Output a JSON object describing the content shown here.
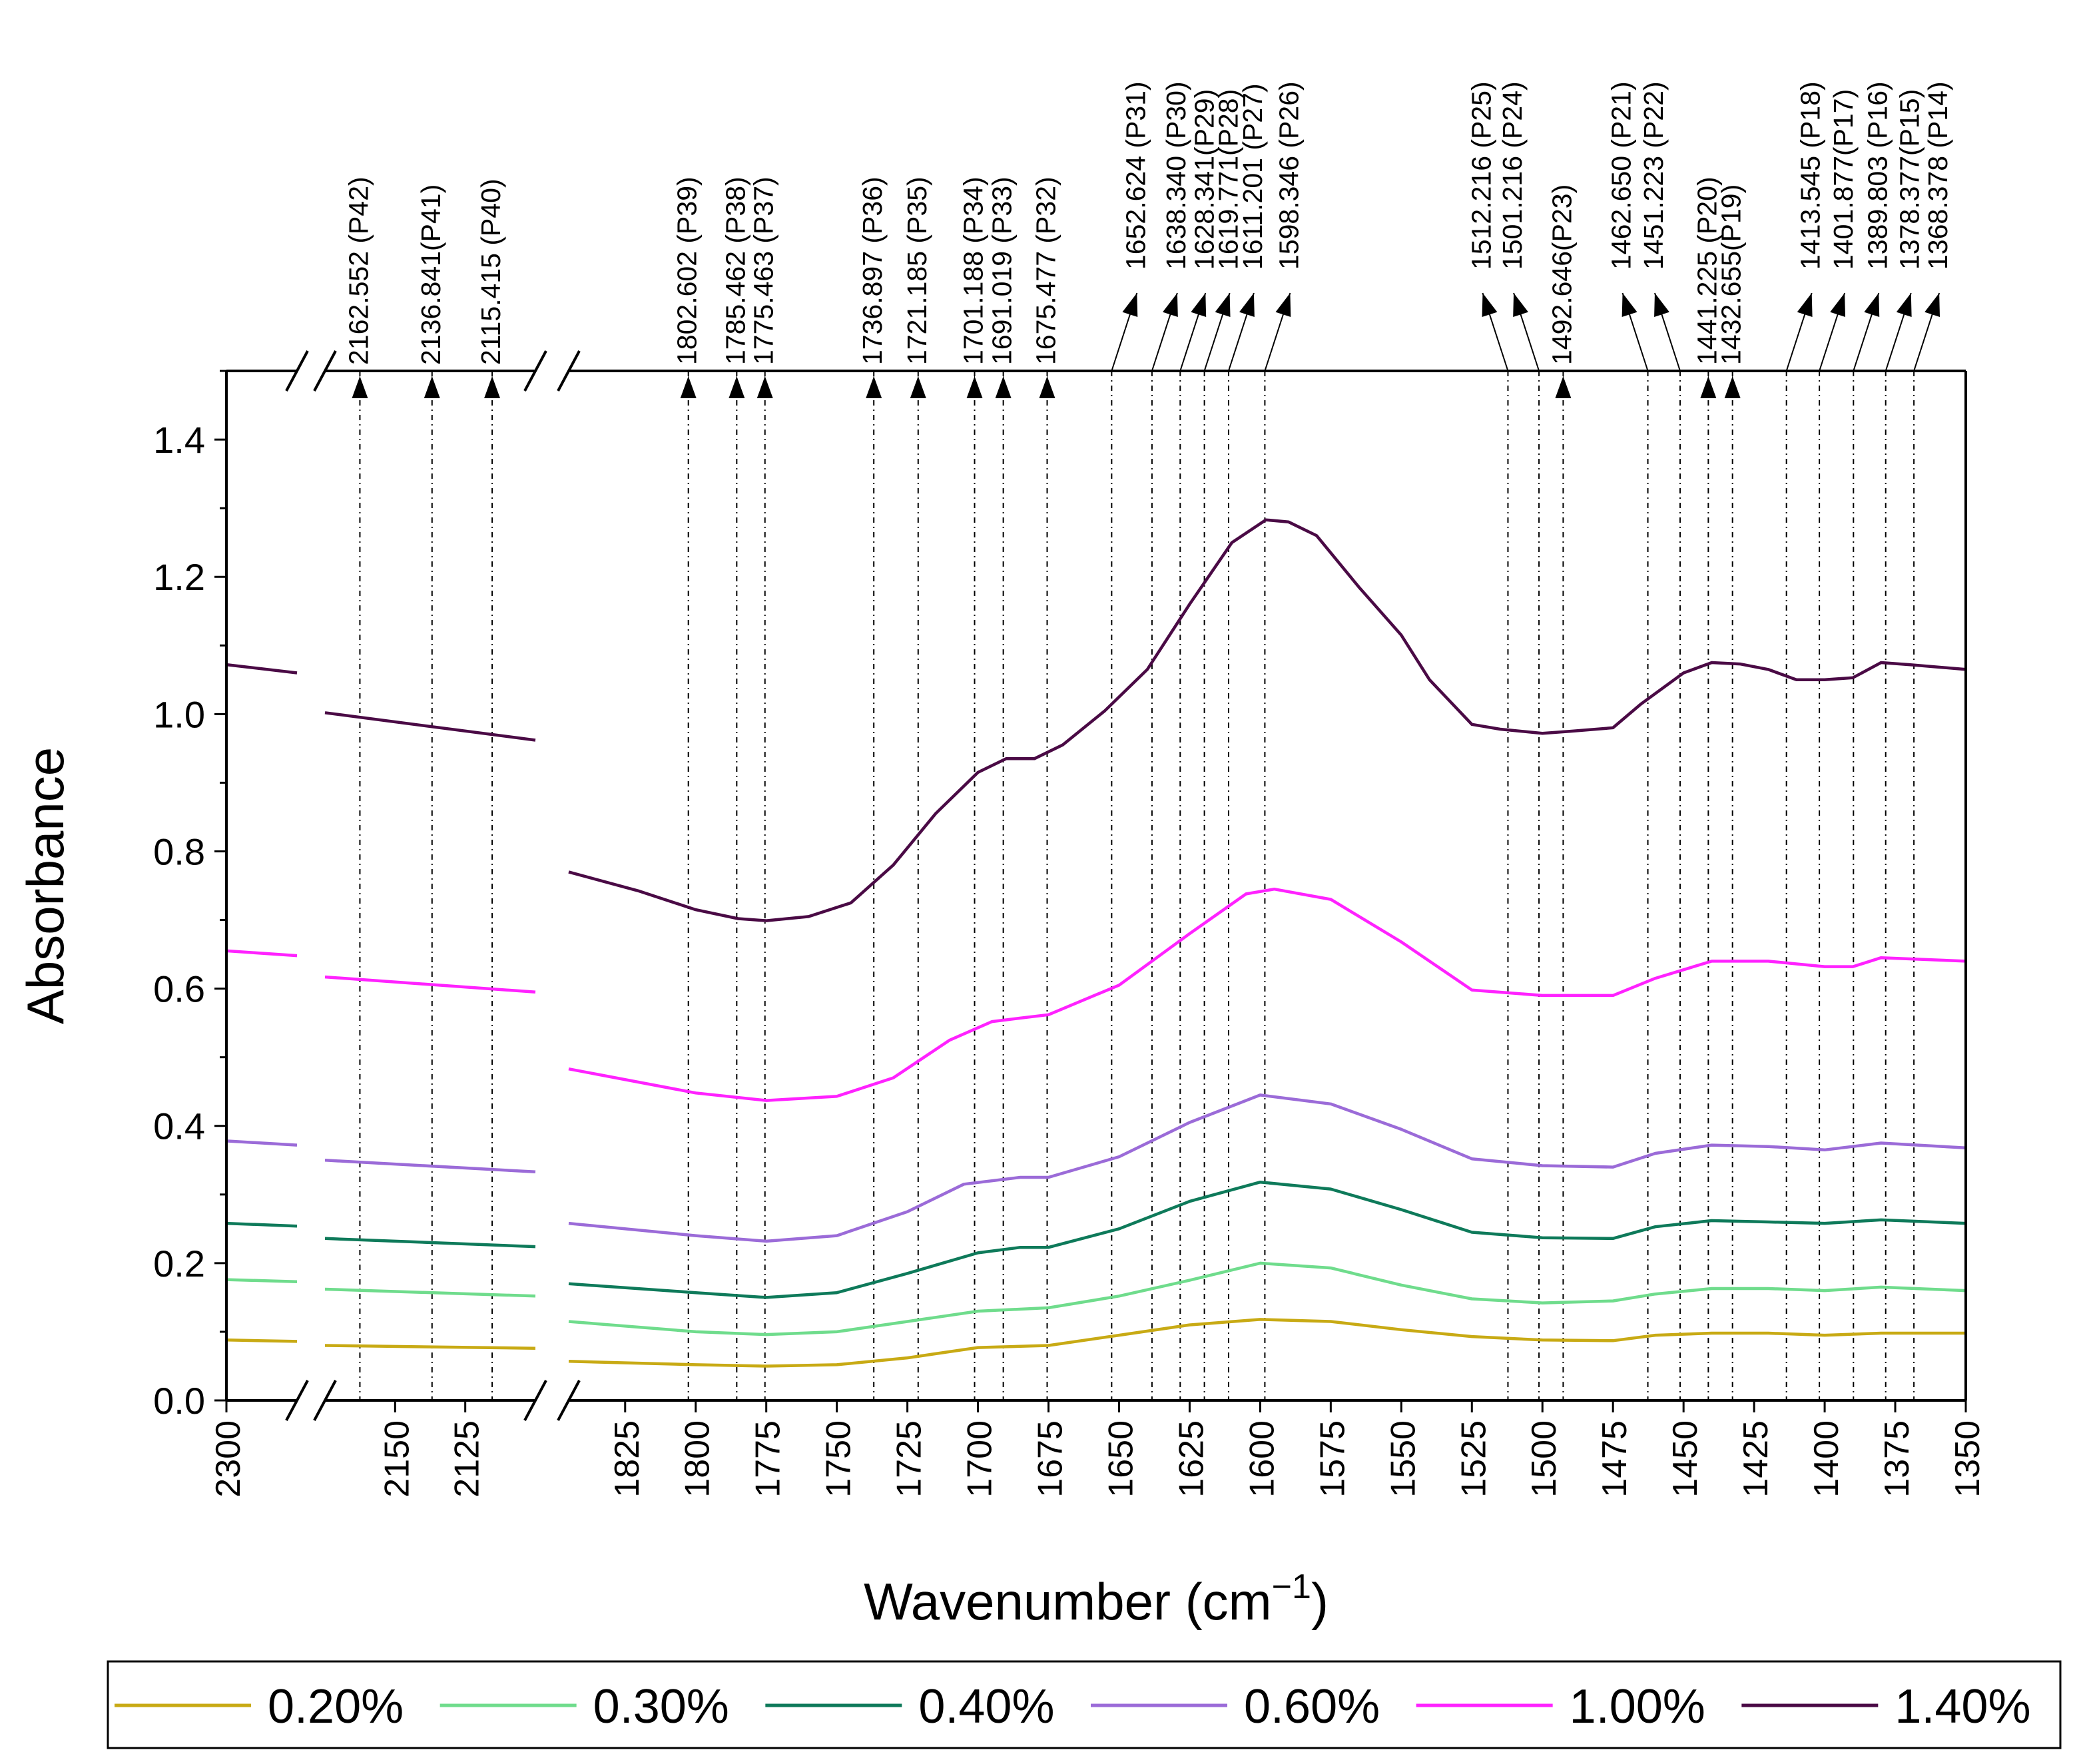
{
  "chart_data": {
    "type": "line",
    "ylabel": "Absorbance",
    "xlabel_main": "Wavenumber (cm",
    "xlabel_sup": "−1",
    "xlabel_close": ")",
    "ylim": [
      0.0,
      1.5
    ],
    "y_ticks": [
      {
        "value": 0.0,
        "label": "0.0"
      },
      {
        "value": 0.2,
        "label": "0.2"
      },
      {
        "value": 0.4,
        "label": "0.4"
      },
      {
        "value": 0.6,
        "label": "0.6"
      },
      {
        "value": 0.8,
        "label": "0.8"
      },
      {
        "value": 1.0,
        "label": "1.0"
      },
      {
        "value": 1.2,
        "label": "1.2"
      },
      {
        "value": 1.4,
        "label": "1.4"
      }
    ],
    "x_axis_reversed": true,
    "x_segments": [
      [
        2300,
        2270
      ],
      [
        2175,
        2100
      ],
      [
        1845,
        1350
      ]
    ],
    "x_ticks": [
      {
        "value": 2300,
        "label": "2300"
      },
      {
        "value": 2150,
        "label": "2150"
      },
      {
        "value": 2125,
        "label": "2125"
      },
      {
        "value": 1825,
        "label": "1825"
      },
      {
        "value": 1800,
        "label": "1800"
      },
      {
        "value": 1775,
        "label": "1775"
      },
      {
        "value": 1750,
        "label": "1750"
      },
      {
        "value": 1725,
        "label": "1725"
      },
      {
        "value": 1700,
        "label": "1700"
      },
      {
        "value": 1675,
        "label": "1675"
      },
      {
        "value": 1650,
        "label": "1650"
      },
      {
        "value": 1625,
        "label": "1625"
      },
      {
        "value": 1600,
        "label": "1600"
      },
      {
        "value": 1575,
        "label": "1575"
      },
      {
        "value": 1550,
        "label": "1550"
      },
      {
        "value": 1525,
        "label": "1525"
      },
      {
        "value": 1500,
        "label": "1500"
      },
      {
        "value": 1475,
        "label": "1475"
      },
      {
        "value": 1450,
        "label": "1450"
      },
      {
        "value": 1425,
        "label": "1425"
      },
      {
        "value": 1400,
        "label": "1400"
      },
      {
        "value": 1375,
        "label": "1375"
      },
      {
        "value": 1350,
        "label": "1350"
      }
    ],
    "peaks": [
      {
        "wn": 2162.552,
        "label": "2162.552 (P42)",
        "dir": "up"
      },
      {
        "wn": 2136.841,
        "label": "2136.841(P41)",
        "dir": "up"
      },
      {
        "wn": 2115.415,
        "label": "2115.415 (P40)",
        "dir": "up"
      },
      {
        "wn": 1802.602,
        "label": "1802.602 (P39)",
        "dir": "up"
      },
      {
        "wn": 1785.462,
        "label": "1785.462 (P38)",
        "dir": "up"
      },
      {
        "wn": 1775.463,
        "label": "1775.463 (P37)",
        "dir": "up"
      },
      {
        "wn": 1736.897,
        "label": "1736.897 (P36)",
        "dir": "up"
      },
      {
        "wn": 1721.185,
        "label": "1721.185 (P35)",
        "dir": "up"
      },
      {
        "wn": 1701.188,
        "label": "1701.188 (P34)",
        "dir": "up"
      },
      {
        "wn": 1691.019,
        "label": "1691.019 (P33)",
        "dir": "up"
      },
      {
        "wn": 1675.477,
        "label": "1675.477 (P32)",
        "dir": "up"
      },
      {
        "wn": 1652.624,
        "label": "1652.624 (P31)",
        "dir": "right"
      },
      {
        "wn": 1638.34,
        "label": "1638.340 (P30)",
        "dir": "right"
      },
      {
        "wn": 1628.341,
        "label": "1628.341(P29)",
        "dir": "right"
      },
      {
        "wn": 1619.771,
        "label": "1619.771(P28)",
        "dir": "right"
      },
      {
        "wn": 1611.201,
        "label": "1611.201 (P27)",
        "dir": "right"
      },
      {
        "wn": 1598.346,
        "label": "1598.346 (P26)",
        "dir": "right"
      },
      {
        "wn": 1512.216,
        "label": "1512.216 (P25)",
        "dir": "left"
      },
      {
        "wn": 1501.216,
        "label": "1501.216 (P24)",
        "dir": "left"
      },
      {
        "wn": 1492.646,
        "label": "1492.646(P23)",
        "dir": "up"
      },
      {
        "wn": 1462.65,
        "label": "1462.650 (P21)",
        "dir": "left"
      },
      {
        "wn": 1451.223,
        "label": "1451.223  (P22)",
        "dir": "left"
      },
      {
        "wn": 1441.225,
        "label": "1441.225 (P20)",
        "dir": "up"
      },
      {
        "wn": 1432.655,
        "label": "1432.655(P19)",
        "dir": "up"
      },
      {
        "wn": 1413.545,
        "label": "1413.545 (P18)",
        "dir": "right"
      },
      {
        "wn": 1401.877,
        "label": "1401.877(P17)",
        "dir": "right"
      },
      {
        "wn": 1389.803,
        "label": "1389.803 (P16)",
        "dir": "right"
      },
      {
        "wn": 1378.377,
        "label": "1378.377(P15)",
        "dir": "right"
      },
      {
        "wn": 1368.378,
        "label": "1368.378 (P14)",
        "dir": "right"
      }
    ],
    "series": [
      {
        "name": "0.20%",
        "color": "#c8aa14",
        "points": [
          [
            2300,
            0.088
          ],
          [
            2270,
            0.086
          ],
          [
            2175,
            0.08
          ],
          [
            2100,
            0.076
          ],
          [
            1845,
            0.057
          ],
          [
            1800,
            0.052
          ],
          [
            1775,
            0.05
          ],
          [
            1750,
            0.052
          ],
          [
            1725,
            0.062
          ],
          [
            1700,
            0.077
          ],
          [
            1675,
            0.08
          ],
          [
            1650,
            0.095
          ],
          [
            1625,
            0.11
          ],
          [
            1600,
            0.118
          ],
          [
            1575,
            0.115
          ],
          [
            1550,
            0.103
          ],
          [
            1525,
            0.093
          ],
          [
            1500,
            0.088
          ],
          [
            1475,
            0.087
          ],
          [
            1460,
            0.095
          ],
          [
            1440,
            0.098
          ],
          [
            1420,
            0.098
          ],
          [
            1400,
            0.095
          ],
          [
            1380,
            0.098
          ],
          [
            1350,
            0.098
          ]
        ]
      },
      {
        "name": "0.30%",
        "color": "#6fdc8c",
        "points": [
          [
            2300,
            0.176
          ],
          [
            2270,
            0.173
          ],
          [
            2175,
            0.162
          ],
          [
            2100,
            0.152
          ],
          [
            1845,
            0.115
          ],
          [
            1800,
            0.1
          ],
          [
            1775,
            0.096
          ],
          [
            1750,
            0.1
          ],
          [
            1725,
            0.115
          ],
          [
            1700,
            0.13
          ],
          [
            1675,
            0.135
          ],
          [
            1650,
            0.152
          ],
          [
            1625,
            0.175
          ],
          [
            1600,
            0.2
          ],
          [
            1575,
            0.193
          ],
          [
            1550,
            0.168
          ],
          [
            1525,
            0.148
          ],
          [
            1500,
            0.142
          ],
          [
            1475,
            0.145
          ],
          [
            1460,
            0.155
          ],
          [
            1440,
            0.163
          ],
          [
            1420,
            0.163
          ],
          [
            1400,
            0.16
          ],
          [
            1380,
            0.165
          ],
          [
            1350,
            0.16
          ]
        ]
      },
      {
        "name": "0.40%",
        "color": "#0e7a5a",
        "points": [
          [
            2300,
            0.258
          ],
          [
            2270,
            0.254
          ],
          [
            2175,
            0.236
          ],
          [
            2100,
            0.224
          ],
          [
            1845,
            0.17
          ],
          [
            1800,
            0.157
          ],
          [
            1775,
            0.15
          ],
          [
            1750,
            0.157
          ],
          [
            1725,
            0.185
          ],
          [
            1700,
            0.215
          ],
          [
            1685,
            0.223
          ],
          [
            1675,
            0.223
          ],
          [
            1650,
            0.25
          ],
          [
            1625,
            0.29
          ],
          [
            1600,
            0.318
          ],
          [
            1575,
            0.308
          ],
          [
            1550,
            0.278
          ],
          [
            1525,
            0.245
          ],
          [
            1500,
            0.237
          ],
          [
            1475,
            0.236
          ],
          [
            1460,
            0.253
          ],
          [
            1440,
            0.262
          ],
          [
            1420,
            0.26
          ],
          [
            1400,
            0.258
          ],
          [
            1380,
            0.263
          ],
          [
            1350,
            0.258
          ]
        ]
      },
      {
        "name": "0.60%",
        "color": "#9b6bd8",
        "points": [
          [
            2300,
            0.378
          ],
          [
            2270,
            0.372
          ],
          [
            2175,
            0.35
          ],
          [
            2100,
            0.333
          ],
          [
            1845,
            0.258
          ],
          [
            1800,
            0.24
          ],
          [
            1775,
            0.232
          ],
          [
            1750,
            0.24
          ],
          [
            1725,
            0.275
          ],
          [
            1705,
            0.315
          ],
          [
            1685,
            0.325
          ],
          [
            1675,
            0.325
          ],
          [
            1650,
            0.355
          ],
          [
            1625,
            0.405
          ],
          [
            1600,
            0.445
          ],
          [
            1575,
            0.432
          ],
          [
            1550,
            0.395
          ],
          [
            1525,
            0.352
          ],
          [
            1500,
            0.342
          ],
          [
            1475,
            0.34
          ],
          [
            1460,
            0.36
          ],
          [
            1440,
            0.372
          ],
          [
            1420,
            0.37
          ],
          [
            1400,
            0.365
          ],
          [
            1380,
            0.375
          ],
          [
            1350,
            0.368
          ]
        ]
      },
      {
        "name": "1.00%",
        "color": "#ff22ff",
        "points": [
          [
            2300,
            0.655
          ],
          [
            2270,
            0.648
          ],
          [
            2175,
            0.617
          ],
          [
            2100,
            0.595
          ],
          [
            1845,
            0.483
          ],
          [
            1800,
            0.448
          ],
          [
            1775,
            0.437
          ],
          [
            1750,
            0.443
          ],
          [
            1730,
            0.47
          ],
          [
            1710,
            0.525
          ],
          [
            1695,
            0.552
          ],
          [
            1685,
            0.557
          ],
          [
            1675,
            0.562
          ],
          [
            1650,
            0.605
          ],
          [
            1625,
            0.68
          ],
          [
            1605,
            0.738
          ],
          [
            1595,
            0.745
          ],
          [
            1575,
            0.73
          ],
          [
            1550,
            0.668
          ],
          [
            1525,
            0.598
          ],
          [
            1500,
            0.59
          ],
          [
            1475,
            0.59
          ],
          [
            1460,
            0.615
          ],
          [
            1440,
            0.64
          ],
          [
            1420,
            0.64
          ],
          [
            1400,
            0.632
          ],
          [
            1390,
            0.632
          ],
          [
            1380,
            0.645
          ],
          [
            1350,
            0.64
          ]
        ]
      },
      {
        "name": "1.40%",
        "color": "#4a0a45",
        "points": [
          [
            2300,
            1.072
          ],
          [
            2270,
            1.06
          ],
          [
            2175,
            1.002
          ],
          [
            2100,
            0.962
          ],
          [
            1845,
            0.77
          ],
          [
            1820,
            0.742
          ],
          [
            1800,
            0.715
          ],
          [
            1785,
            0.702
          ],
          [
            1775,
            0.699
          ],
          [
            1760,
            0.705
          ],
          [
            1745,
            0.725
          ],
          [
            1730,
            0.78
          ],
          [
            1715,
            0.855
          ],
          [
            1700,
            0.915
          ],
          [
            1690,
            0.935
          ],
          [
            1680,
            0.935
          ],
          [
            1670,
            0.955
          ],
          [
            1655,
            1.005
          ],
          [
            1640,
            1.065
          ],
          [
            1625,
            1.16
          ],
          [
            1610,
            1.25
          ],
          [
            1598,
            1.283
          ],
          [
            1590,
            1.28
          ],
          [
            1580,
            1.26
          ],
          [
            1565,
            1.185
          ],
          [
            1550,
            1.115
          ],
          [
            1540,
            1.05
          ],
          [
            1525,
            0.985
          ],
          [
            1515,
            0.978
          ],
          [
            1500,
            0.972
          ],
          [
            1490,
            0.975
          ],
          [
            1475,
            0.98
          ],
          [
            1465,
            1.015
          ],
          [
            1450,
            1.06
          ],
          [
            1440,
            1.075
          ],
          [
            1430,
            1.073
          ],
          [
            1420,
            1.065
          ],
          [
            1410,
            1.05
          ],
          [
            1400,
            1.05
          ],
          [
            1390,
            1.053
          ],
          [
            1380,
            1.075
          ],
          [
            1370,
            1.072
          ],
          [
            1350,
            1.065
          ]
        ]
      }
    ]
  }
}
